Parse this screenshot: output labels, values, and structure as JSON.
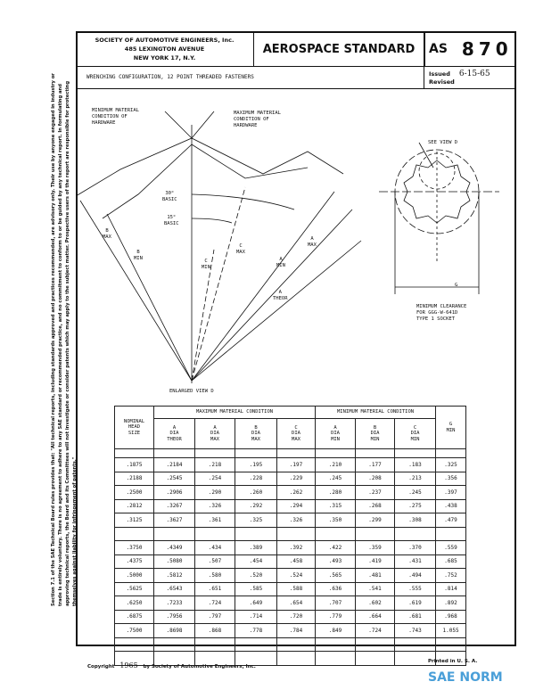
{
  "header": {
    "org_lines": [
      "SOCIETY OF AUTOMOTIVE ENGINEERS, Inc.",
      "485 LEXINGTON AVENUE",
      "NEW YORK 17, N.Y."
    ],
    "standard_label": "AEROSPACE STANDARD",
    "as_prefix": "AS",
    "as_number": "870",
    "title": "WRENCHING CONFIGURATION, 12 POINT THREADED FASTENERS",
    "issued_label": "Issued",
    "issued_date": "6-15-65",
    "revised_label": "Revised"
  },
  "drawing": {
    "min_material": "MINIMUM MATERIAL\nCONDITION OF\nHARDWARE",
    "max_material": "MAXIMUM MATERIAL\nCONDITION OF\nHARDWARE",
    "angle30": "30°\nBASIC",
    "angle15": "15°\nBASIC",
    "b_max": "B\nMAX",
    "b_min": "B\nMIN",
    "c_min": "C\nMIN",
    "c_max": "C\nMAX",
    "a_min": "A\nMIN",
    "a_max": "A\nMAX",
    "a_theor": "A\nTHEOR",
    "enlarged": "ENLARGED VIEW D",
    "see_view": "SEE VIEW D",
    "dim_g": "G",
    "clearance": "MINIMUM CLEARANCE\nFOR GGG-W-641D\nTYPE 1 SOCKET"
  },
  "table": {
    "col0": "NOMINAL\nHEAD\nSIZE",
    "group_max": "MAXIMUM MATERIAL CONDITION",
    "group_min": "MINIMUM MATERIAL CONDITION",
    "cols": [
      "A\nDIA\nTHEOR",
      "A\nDIA\nMAX",
      "B\nDIA\nMAX",
      "C\nDIA\nMAX",
      "A\nDIA\nMIN",
      "B\nDIA\nMIN",
      "C\nDIA\nMIN",
      "G\nMIN"
    ],
    "rows": [
      [
        ".1875",
        ".2184",
        ".218",
        ".195",
        ".197",
        ".210",
        ".177",
        ".183",
        ".325"
      ],
      [
        ".2188",
        ".2545",
        ".254",
        ".228",
        ".229",
        ".245",
        ".208",
        ".213",
        ".356"
      ],
      [
        ".2500",
        ".2906",
        ".290",
        ".260",
        ".262",
        ".280",
        ".237",
        ".245",
        ".397"
      ],
      [
        ".2812",
        ".3267",
        ".326",
        ".292",
        ".294",
        ".315",
        ".268",
        ".275",
        ".438"
      ],
      [
        ".3125",
        ".3627",
        ".361",
        ".325",
        ".326",
        ".350",
        ".299",
        ".308",
        ".479"
      ],
      [
        "",
        "",
        "",
        "",
        "",
        "",
        "",
        "",
        ""
      ],
      [
        ".3750",
        ".4349",
        ".434",
        ".389",
        ".392",
        ".422",
        ".359",
        ".370",
        ".559"
      ],
      [
        ".4375",
        ".5080",
        ".507",
        ".454",
        ".458",
        ".493",
        ".419",
        ".431",
        ".685"
      ],
      [
        ".5000",
        ".5812",
        ".580",
        ".520",
        ".524",
        ".565",
        ".481",
        ".494",
        ".752"
      ],
      [
        ".5625",
        ".6543",
        ".651",
        ".585",
        ".588",
        ".636",
        ".541",
        ".555",
        ".814"
      ],
      [
        ".6250",
        ".7233",
        ".724",
        ".649",
        ".654",
        ".707",
        ".602",
        ".619",
        ".892"
      ],
      [
        ".6875",
        ".7956",
        ".797",
        ".714",
        ".720",
        ".779",
        ".664",
        ".681",
        ".968"
      ],
      [
        ".7500",
        ".8698",
        ".868",
        ".778",
        ".784",
        ".849",
        ".724",
        ".743",
        "1.055"
      ],
      [
        "",
        "",
        "",
        "",
        "",
        "",
        "",
        "",
        ""
      ],
      [
        "",
        "",
        "",
        "",
        "",
        "",
        "",
        "",
        ""
      ]
    ]
  },
  "side_note": "Section 7.1 of the SAE Technical Board rules provides that: \"All technical reports, including standards approved and practices recommended, are advisory only. Their use by anyone engaged in industry or trade is entirely voluntary. There is no agreement to adhere to any SAE standard or recommended practice, and no commitment to conform to or be guided by any technical report. In formulating and approving technical reports, the Board and its Committees will not investigate or consider patents which may apply to the subject matter. Prospective users of the report are responsible for protecting themselves against liability for infringement of patents.\"",
  "footer": {
    "copyright": "Copyright",
    "year": "1965",
    "by": "by Society of Automotive Engineers, Inc.",
    "printed": "Printed in U. S. A.",
    "logo": "SAE NORM"
  }
}
